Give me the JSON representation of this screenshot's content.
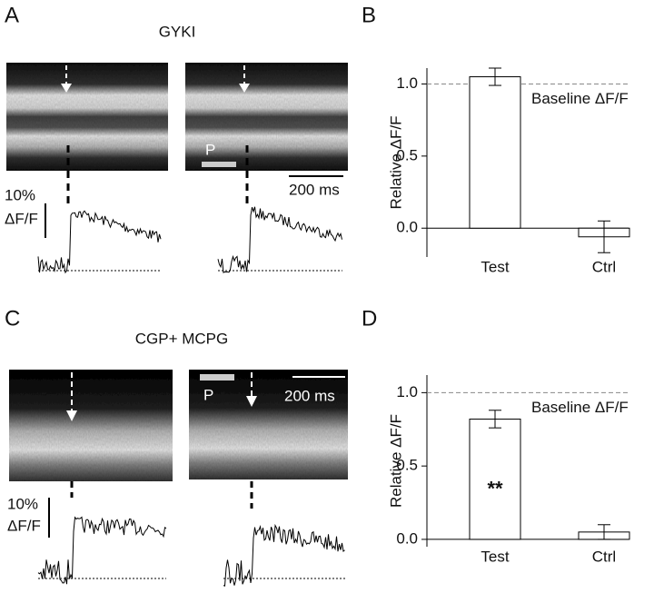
{
  "figure": {
    "panel_labels": [
      "A",
      "B",
      "C",
      "D"
    ],
    "panel_a": {
      "title": "GYKI",
      "stimulus_label": "P",
      "time_scale": "200 ms",
      "amplitude_scale": "10%",
      "amplitude_unit": "ΔF/F"
    },
    "panel_c": {
      "title": "CGP+ MCPG",
      "stimulus_label": "P",
      "time_scale": "200 ms",
      "amplitude_scale": "10%",
      "amplitude_unit": "ΔF/F"
    }
  },
  "chart_data": [
    {
      "type": "bar",
      "y_label": "Relative ΔF/F",
      "categories": [
        "Test",
        "Ctrl"
      ],
      "values": [
        1.05,
        -0.06
      ],
      "errors": [
        0.06,
        0.11
      ],
      "color": "#ffffff",
      "ylim": [
        -0.2,
        1.11
      ],
      "yticks": [
        {
          "value": 0,
          "label": "0.0"
        },
        0.5,
        {
          "value": 1,
          "label": "1.0"
        }
      ],
      "reference_line": {
        "value": 1,
        "label": "Baseline ΔF/F"
      }
    },
    {
      "type": "bar",
      "y_label": "Relative ΔF/F",
      "categories": [
        "Test",
        "Ctrl"
      ],
      "values": [
        0.82,
        0.05
      ],
      "errors": [
        0.06,
        0.05
      ],
      "color": "#ffffff",
      "ylim": [
        -0.05,
        1.12
      ],
      "yticks": [
        {
          "value": 0,
          "label": "0.0"
        },
        0.5,
        {
          "value": 1,
          "label": "1.0"
        }
      ],
      "reference_line": {
        "value": 1,
        "label": "Baseline ΔF/F"
      },
      "annotations": [
        {
          "text": "**",
          "category_index": 0
        }
      ]
    }
  ]
}
